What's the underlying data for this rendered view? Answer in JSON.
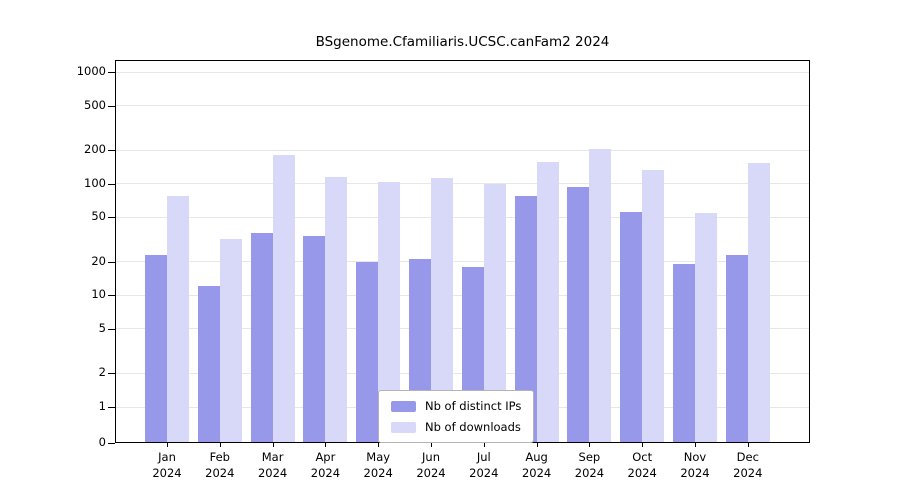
{
  "colors": {
    "ips": "#9898ea",
    "downloads": "#d8d8f8",
    "grid": "#e7e7e7",
    "axis": "#000000",
    "legend_border": "#b3b3b3",
    "background": "#ffffff"
  },
  "legend": {
    "items": [
      {
        "label": "Nb of distinct IPs",
        "color_key": "ips"
      },
      {
        "label": "Nb of downloads",
        "color_key": "downloads"
      }
    ]
  },
  "chart_data": {
    "type": "bar",
    "title": "BSgenome.Cfamiliaris.UCSC.canFam2 2024",
    "categories": [
      "Jan",
      "Feb",
      "Mar",
      "Apr",
      "May",
      "Jun",
      "Jul",
      "Aug",
      "Sep",
      "Oct",
      "Nov",
      "Dec"
    ],
    "x_sub_label": "2024",
    "series": [
      {
        "name": "Nb of distinct IPs",
        "color_key": "ips",
        "values": [
          23,
          12,
          36,
          34,
          20,
          21,
          18,
          77,
          93,
          56,
          19,
          23
        ]
      },
      {
        "name": "Nb of downloads",
        "color_key": "downloads",
        "values": [
          78,
          32,
          180,
          114,
          103,
          112,
          100,
          155,
          203,
          133,
          55,
          152
        ]
      }
    ],
    "yscale": "log",
    "yticks": [
      0,
      1,
      2,
      5,
      10,
      20,
      50,
      100,
      200,
      500,
      1000
    ],
    "ylim": [
      0,
      1000
    ],
    "grid": true,
    "legend_position": "lower-center"
  }
}
